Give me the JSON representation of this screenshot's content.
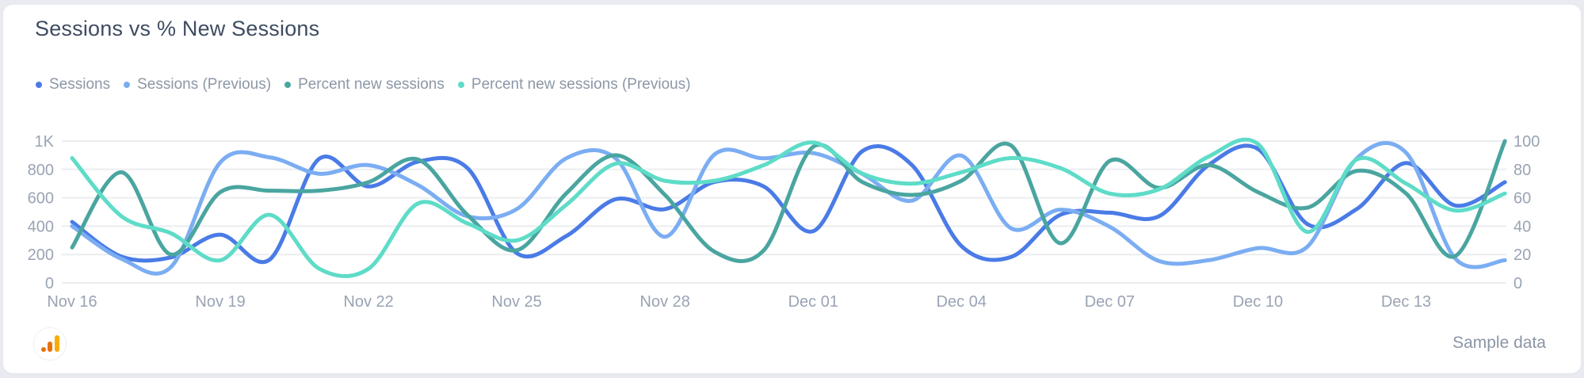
{
  "card": {
    "title": "Sessions vs % New Sessions"
  },
  "footer": {
    "sample_label": "Sample data",
    "source_icon": "google-analytics-icon",
    "icon_colors": {
      "orange": "#e8710a",
      "amber": "#f9ab00"
    }
  },
  "theme": {
    "card_bg": "#ffffff",
    "page_bg": "#e9ebf0",
    "title_color": "#3e4c61",
    "legend_text_color": "#8d97a7",
    "axis_label_color": "#9aa3b4",
    "gridline_color": "#ebedf0"
  },
  "chart_data": {
    "type": "line",
    "title": "Sessions vs % New Sessions",
    "grid": "horizontal",
    "legend_position": "top-left",
    "x_dates": [
      "Nov 16",
      "Nov 17",
      "Nov 18",
      "Nov 19",
      "Nov 20",
      "Nov 21",
      "Nov 22",
      "Nov 23",
      "Nov 24",
      "Nov 25",
      "Nov 26",
      "Nov 27",
      "Nov 28",
      "Nov 29",
      "Nov 30",
      "Dec 01",
      "Dec 02",
      "Dec 03",
      "Dec 04",
      "Dec 05",
      "Dec 06",
      "Dec 07",
      "Dec 08",
      "Dec 09",
      "Dec 10",
      "Dec 11",
      "Dec 12",
      "Dec 13",
      "Dec 14",
      "Dec 15"
    ],
    "x_ticks": [
      {
        "index": 0,
        "label": "Nov 16"
      },
      {
        "index": 3,
        "label": "Nov 19"
      },
      {
        "index": 6,
        "label": "Nov 22"
      },
      {
        "index": 9,
        "label": "Nov 25"
      },
      {
        "index": 12,
        "label": "Nov 28"
      },
      {
        "index": 15,
        "label": "Dec 01"
      },
      {
        "index": 18,
        "label": "Dec 04"
      },
      {
        "index": 21,
        "label": "Dec 07"
      },
      {
        "index": 24,
        "label": "Dec 10"
      },
      {
        "index": 27,
        "label": "Dec 13"
      }
    ],
    "axes": {
      "left": {
        "min": 0,
        "max": 1000,
        "ticks": [
          {
            "label": "1K",
            "value": 1000
          },
          {
            "label": "800",
            "value": 800
          },
          {
            "label": "600",
            "value": 600
          },
          {
            "label": "400",
            "value": 400
          },
          {
            "label": "200",
            "value": 200
          },
          {
            "label": "0",
            "value": 0
          }
        ]
      },
      "right": {
        "min": 0,
        "max": 100,
        "ticks": [
          {
            "label": "100",
            "value": 100
          },
          {
            "label": "80",
            "value": 80
          },
          {
            "label": "60",
            "value": 60
          },
          {
            "label": "40",
            "value": 40
          },
          {
            "label": "20",
            "value": 20
          },
          {
            "label": "0",
            "value": 0
          }
        ]
      }
    },
    "series": [
      {
        "name": "Sessions",
        "axis": "left",
        "color": "#4a7be6",
        "values": [
          430,
          185,
          180,
          340,
          165,
          875,
          680,
          855,
          810,
          210,
          330,
          590,
          520,
          712,
          680,
          365,
          930,
          830,
          260,
          182,
          480,
          495,
          470,
          830,
          945,
          415,
          520,
          845,
          545,
          710
        ]
      },
      {
        "name": "Sessions (Previous)",
        "axis": "left",
        "color": "#7badf2",
        "values": [
          400,
          170,
          112,
          850,
          885,
          770,
          830,
          690,
          470,
          520,
          878,
          878,
          325,
          905,
          878,
          915,
          767,
          580,
          897,
          386,
          516,
          396,
          154,
          160,
          245,
          255,
          877,
          918,
          170,
          160
        ]
      },
      {
        "name": "Percent new sessions",
        "axis": "right",
        "color": "#4aa5a0",
        "values": [
          25,
          78,
          20,
          64,
          65,
          65,
          71,
          87,
          48,
          23,
          63,
          90,
          62,
          22,
          23,
          96,
          71,
          62,
          72,
          97,
          28,
          86,
          67,
          83,
          64,
          53,
          79,
          63,
          19,
          100
        ]
      },
      {
        "name": "Percent new sessions (Previous)",
        "axis": "right",
        "color": "#5edcc8",
        "values": [
          88,
          47,
          35,
          16,
          48,
          10,
          10,
          56,
          42,
          30,
          55,
          84,
          72,
          72,
          83,
          99,
          77,
          70,
          78,
          88,
          81,
          63,
          66,
          89,
          98,
          36,
          87,
          70,
          51,
          63
        ]
      }
    ]
  }
}
